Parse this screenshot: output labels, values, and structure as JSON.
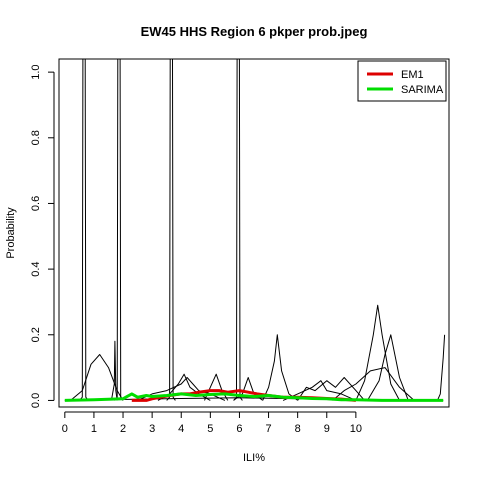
{
  "chart_data": {
    "type": "line",
    "title": "EW45 HHS Region 6 pkper prob.jpeg",
    "xlabel": "ILI%",
    "ylabel": "Probability",
    "xlim": [
      -0.2,
      13.2
    ],
    "ylim": [
      -0.02,
      1.04
    ],
    "x_ticks": [
      0,
      1,
      2,
      3,
      4,
      5,
      6,
      7,
      8,
      9,
      10
    ],
    "x_tick_labels": [
      "0",
      "1",
      "2",
      "3",
      "4",
      "5",
      "6",
      "7",
      "8",
      "9",
      "10"
    ],
    "y_ticks": [
      0.0,
      0.2,
      0.4,
      0.6,
      0.8,
      1.0
    ],
    "y_tick_labels": [
      "0.0",
      "0.2",
      "0.4",
      "0.6",
      "0.8",
      "1.0"
    ],
    "legend": {
      "position": "top-right",
      "entries": [
        {
          "label": "EM1",
          "color": "#dd0000"
        },
        {
          "label": "SARIMA",
          "color": "#00dd00"
        }
      ]
    },
    "series": [
      {
        "name": "EM1",
        "color": "#dd0000",
        "x": [
          2.3,
          2.8,
          3.0,
          3.3,
          3.6,
          4.0,
          4.3,
          4.6,
          5.0,
          5.3,
          5.6,
          6.0,
          6.3,
          6.6,
          7.0,
          7.5,
          8.0,
          8.5,
          9.0,
          9.5,
          10.0
        ],
        "y": [
          0.0,
          0.0,
          0.005,
          0.01,
          0.015,
          0.02,
          0.02,
          0.025,
          0.03,
          0.03,
          0.025,
          0.03,
          0.025,
          0.02,
          0.015,
          0.01,
          0.01,
          0.008,
          0.006,
          0.004,
          0.0
        ]
      },
      {
        "name": "SARIMA",
        "color": "#00dd00",
        "x": [
          0.0,
          1.0,
          2.0,
          2.3,
          2.5,
          2.8,
          3.0,
          3.5,
          4.0,
          4.5,
          5.0,
          5.5,
          6.0,
          6.5,
          7.0,
          7.5,
          8.0,
          8.5,
          9.0,
          9.5,
          10.0,
          11.0,
          12.0,
          13.0
        ],
        "y": [
          0.0,
          0.002,
          0.005,
          0.02,
          0.01,
          0.015,
          0.012,
          0.015,
          0.02,
          0.015,
          0.018,
          0.02,
          0.015,
          0.012,
          0.015,
          0.01,
          0.008,
          0.006,
          0.005,
          0.002,
          0.002,
          0.0,
          0.0,
          0.0
        ]
      },
      {
        "x": [
          0.5,
          0.6,
          0.62,
          0.7,
          0.72,
          0.8
        ],
        "y": [
          0.0,
          0.01,
          1.04,
          1.04,
          0.01,
          0.0
        ]
      },
      {
        "x": [
          1.7,
          1.8,
          1.82,
          1.9,
          1.92,
          2.0
        ],
        "y": [
          0.0,
          0.01,
          1.04,
          1.04,
          0.01,
          0.0
        ]
      },
      {
        "x": [
          3.5,
          3.6,
          3.62,
          3.7,
          3.72,
          3.8
        ],
        "y": [
          0.0,
          0.01,
          1.04,
          1.04,
          0.01,
          0.0
        ]
      },
      {
        "x": [
          5.8,
          5.9,
          5.92,
          6.0,
          6.02,
          6.1
        ],
        "y": [
          0.0,
          0.01,
          1.04,
          1.04,
          0.01,
          0.0
        ]
      },
      {
        "x": [
          0.2,
          0.6,
          0.9,
          1.2,
          1.5,
          1.8,
          2.0
        ],
        "y": [
          0.0,
          0.03,
          0.11,
          0.14,
          0.1,
          0.03,
          0.0
        ]
      },
      {
        "x": [
          1.6,
          1.7,
          1.72,
          1.75,
          1.8
        ],
        "y": [
          0.0,
          0.05,
          0.18,
          0.03,
          0.0
        ]
      },
      {
        "x": [
          6.8,
          7.0,
          7.2,
          7.3,
          7.45,
          7.7,
          8.0
        ],
        "y": [
          0.0,
          0.04,
          0.12,
          0.2,
          0.09,
          0.02,
          0.0
        ]
      },
      {
        "x": [
          10.0,
          10.3,
          10.6,
          10.75,
          10.9,
          11.2,
          11.5
        ],
        "y": [
          0.0,
          0.06,
          0.2,
          0.29,
          0.2,
          0.05,
          0.0
        ]
      },
      {
        "x": [
          10.4,
          10.8,
          11.0,
          11.2,
          11.5,
          11.8
        ],
        "y": [
          0.0,
          0.06,
          0.14,
          0.2,
          0.07,
          0.0
        ]
      },
      {
        "x": [
          9.2,
          9.6,
          10.0,
          10.5,
          11.0,
          11.5,
          12.0
        ],
        "y": [
          0.0,
          0.03,
          0.05,
          0.09,
          0.1,
          0.04,
          0.0
        ]
      },
      {
        "x": [
          12.8,
          12.9,
          13.0,
          13.05
        ],
        "y": [
          0.0,
          0.02,
          0.13,
          0.2
        ]
      },
      {
        "x": [
          2.5,
          3.0,
          3.5,
          4.0,
          4.2,
          4.4,
          4.6,
          5.0,
          5.5
        ],
        "y": [
          0.0,
          0.02,
          0.03,
          0.05,
          0.07,
          0.05,
          0.03,
          0.02,
          0.0
        ]
      },
      {
        "x": [
          3.2,
          3.6,
          3.9,
          4.1,
          4.3,
          4.6,
          5.0
        ],
        "y": [
          0.0,
          0.02,
          0.05,
          0.08,
          0.04,
          0.02,
          0.0
        ]
      },
      {
        "x": [
          4.8,
          5.0,
          5.2,
          5.4,
          5.6
        ],
        "y": [
          0.0,
          0.04,
          0.08,
          0.03,
          0.0
        ]
      },
      {
        "x": [
          5.8,
          6.1,
          6.3,
          6.5,
          6.8
        ],
        "y": [
          0.0,
          0.02,
          0.07,
          0.02,
          0.0
        ]
      },
      {
        "x": [
          8.0,
          8.3,
          8.6,
          9.0,
          9.3,
          9.6,
          10.0,
          10.3
        ],
        "y": [
          0.0,
          0.04,
          0.03,
          0.06,
          0.04,
          0.07,
          0.03,
          0.0
        ]
      },
      {
        "x": [
          7.5,
          8.0,
          8.5,
          8.8,
          9.0,
          9.5,
          10.0
        ],
        "y": [
          0.0,
          0.02,
          0.04,
          0.06,
          0.03,
          0.02,
          0.0
        ]
      },
      {
        "x": [
          0.0,
          2.0,
          4.0,
          6.0,
          8.0,
          10.0,
          12.0,
          13.0
        ],
        "y": [
          0.0,
          0.003,
          0.006,
          0.008,
          0.005,
          0.003,
          0.001,
          0.0
        ]
      }
    ]
  }
}
